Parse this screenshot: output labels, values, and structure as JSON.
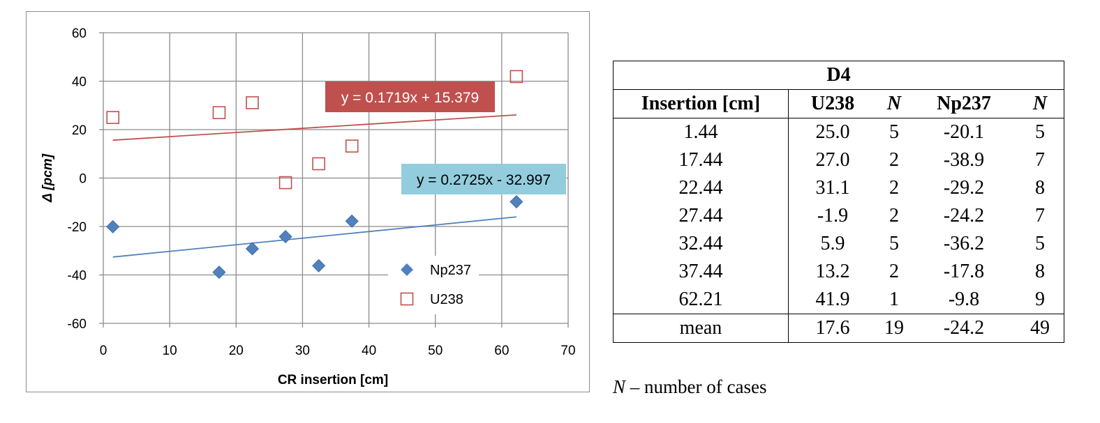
{
  "chart_data": {
    "type": "scatter",
    "xlabel": "CR insertion [cm]",
    "ylabel": "Δ [pcm]",
    "xlim": [
      0,
      70
    ],
    "ylim": [
      -60,
      60
    ],
    "xticks": [
      0,
      10,
      20,
      30,
      40,
      50,
      60,
      70
    ],
    "yticks": [
      60,
      40,
      20,
      0,
      -20,
      -40,
      -60
    ],
    "grid": true,
    "legend_position": "bottom-right",
    "series": [
      {
        "name": "Np237",
        "marker": "diamond",
        "color": "#4f81bd",
        "x": [
          1.44,
          17.44,
          22.44,
          27.44,
          32.44,
          37.44,
          62.21
        ],
        "y": [
          -20.1,
          -38.9,
          -29.2,
          -24.2,
          -36.2,
          -17.8,
          -9.8
        ],
        "trendline": {
          "slope": 0.2725,
          "intercept": -32.997,
          "label": "y = 0.2725x - 32.997",
          "label_bg": "#93cddd",
          "label_color": "#000000"
        }
      },
      {
        "name": "U238",
        "marker": "open-square",
        "color": "#c0504d",
        "x": [
          1.44,
          17.44,
          22.44,
          27.44,
          32.44,
          37.44,
          62.21
        ],
        "y": [
          25.0,
          27.0,
          31.1,
          -1.9,
          5.9,
          13.2,
          41.9
        ],
        "trendline": {
          "slope": 0.1719,
          "intercept": 15.379,
          "label": "y = 0.1719x + 15.379",
          "label_bg": "#c0504d",
          "label_color": "#ffffff"
        }
      }
    ]
  },
  "table": {
    "title": "D4",
    "headers": [
      "Insertion [cm]",
      "U238",
      "N",
      "Np237",
      "N"
    ],
    "rows": [
      [
        "1.44",
        "25.0",
        "5",
        "-20.1",
        "5"
      ],
      [
        "17.44",
        "27.0",
        "2",
        "-38.9",
        "7"
      ],
      [
        "22.44",
        "31.1",
        "2",
        "-29.2",
        "8"
      ],
      [
        "27.44",
        "-1.9",
        "2",
        "-24.2",
        "7"
      ],
      [
        "32.44",
        "5.9",
        "5",
        "-36.2",
        "5"
      ],
      [
        "37.44",
        "13.2",
        "2",
        "-17.8",
        "8"
      ],
      [
        "62.21",
        "41.9",
        "1",
        "-9.8",
        "9"
      ]
    ],
    "mean_row": [
      "mean",
      "17.6",
      "19",
      "-24.2",
      "49"
    ]
  },
  "footnote": {
    "symbol": "N",
    "text": " – number of cases"
  }
}
